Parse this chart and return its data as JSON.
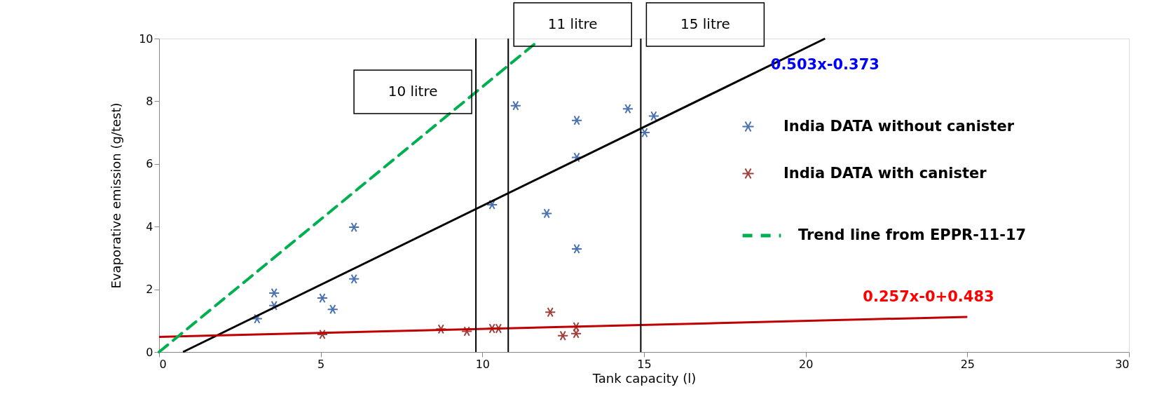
{
  "chart_data": {
    "type": "scatter",
    "xlabel": "Tank capacity (l)",
    "ylabel": "Evaporative emission (g/test)",
    "xlim": [
      0,
      30
    ],
    "xticks": [
      0,
      5,
      10,
      15,
      20,
      25,
      30
    ],
    "ylim": [
      0,
      10
    ],
    "yticks": [
      0,
      2,
      4,
      6,
      8,
      10
    ],
    "grid": false,
    "legend": "right",
    "marker": "cross",
    "line_style": "solid",
    "series": [
      {
        "name": "India DATA without canister",
        "color": "#4a72b0",
        "x": [
          3.03,
          3.56,
          3.56,
          5.05,
          5.37,
          6.03,
          6.03,
          10.3,
          11.03,
          11.99,
          12.92,
          12.92,
          12.92,
          14.5,
          15.02,
          15.3
        ],
        "values": [
          1.06,
          1.88,
          1.48,
          1.72,
          1.36,
          3.98,
          2.33,
          4.7,
          7.86,
          4.42,
          7.39,
          6.21,
          3.29,
          7.76,
          7.0,
          7.53
        ]
      },
      {
        "name": "India DATA with canister",
        "color": "#a0403c",
        "x": [
          5.05,
          8.72,
          9.52,
          10.3,
          10.5,
          12.1,
          12.49,
          12.9,
          12.9
        ],
        "values": [
          0.56,
          0.73,
          0.66,
          0.75,
          0.75,
          1.27,
          0.52,
          0.8,
          0.59
        ]
      },
      {
        "type": "line",
        "color": "#000000",
        "marker": "none",
        "x": [
          0.74,
          20.6
        ],
        "values": [
          0,
          10
        ]
      },
      {
        "type": "line",
        "color": "#c00000",
        "marker": "none",
        "x": [
          0,
          25
        ],
        "values": [
          0.48,
          1.12
        ]
      },
      {
        "type": "line",
        "name": "Trend line from EPPR-11-17",
        "color": "#00b050",
        "marker": "none",
        "line_style": "dashed",
        "x": [
          0,
          11.7
        ],
        "values": [
          0,
          9.9
        ]
      }
    ],
    "ref_lines": [
      {
        "axis": "x",
        "value": 9.8,
        "label": "10 litre",
        "color": "#000000"
      },
      {
        "axis": "x",
        "value": 10.8,
        "label": "11 litre",
        "color": "#000000"
      },
      {
        "axis": "x",
        "value": 14.9,
        "label": "15 litre",
        "color": "#000000"
      }
    ],
    "annotations": [
      "0.503x-0.373",
      "0.257x-0+0.483"
    ]
  }
}
